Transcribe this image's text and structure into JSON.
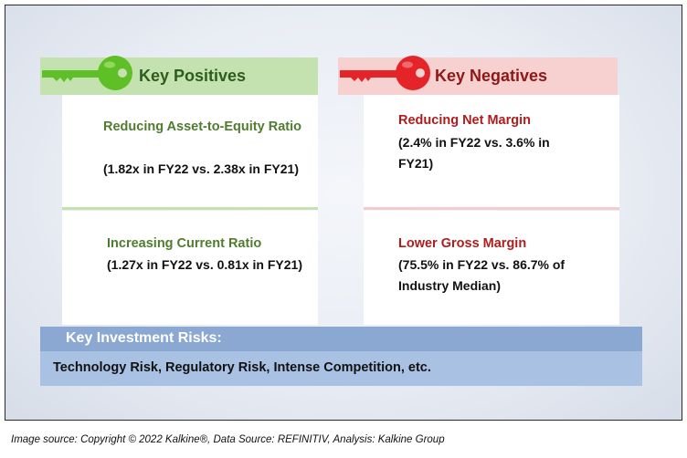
{
  "positives": {
    "heading": "Key Positives",
    "items": [
      {
        "title": "Reducing Asset-to-Equity Ratio",
        "detail": "(1.82x in FY22 vs. 2.38x in FY21)"
      },
      {
        "title": "Increasing Current Ratio",
        "detail": "(1.27x in FY22 vs. 0.81x in FY21)"
      }
    ]
  },
  "negatives": {
    "heading": "Key Negatives",
    "items": [
      {
        "title": "Reducing Net Margin",
        "detail": "(2.4% in FY22 vs. 3.6% in FY21)"
      },
      {
        "title": "Lower Gross Margin",
        "detail": "(75.5% in FY22 vs. 86.7% of Industry Median)"
      }
    ]
  },
  "risks": {
    "heading": "Key Investment Risks:",
    "text": "Technology Risk, Regulatory Risk, Intense Competition, etc."
  },
  "footer": "Image source: Copyright © 2022 Kalkine®, Data Source: REFINITIV, Analysis: Kalkine Group",
  "colors": {
    "positive_key": "#5fbf26",
    "negative_key": "#e5242a",
    "positive_text": "#4f7c2e",
    "negative_text": "#b01c1c",
    "risk_header": "#8aa8d2",
    "risk_body": "#a9c2e3"
  },
  "icons": [
    "green-key-icon",
    "red-key-icon"
  ]
}
